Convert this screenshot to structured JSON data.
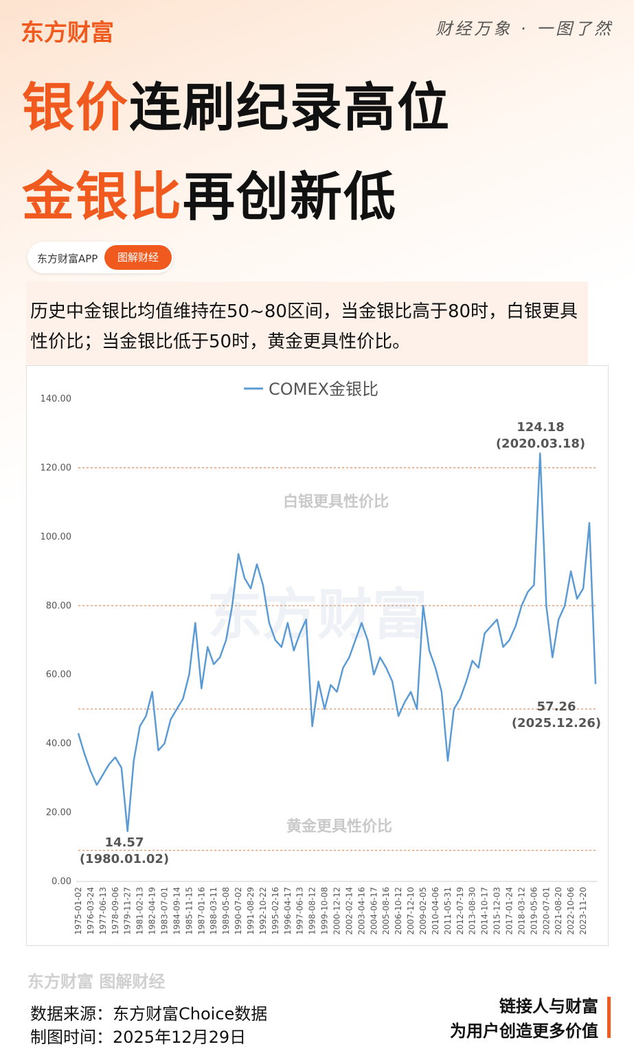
{
  "header": {
    "brand": "东方财富",
    "slogan": "财经万象 · 一图了然",
    "title_line1": [
      "银价",
      "连刷纪录高位"
    ],
    "title_line2": [
      "金银比",
      "再创新低"
    ],
    "tag": "东方财富APP",
    "button": "图解财经"
  },
  "intro": "历史中金银比均值维持在50~80区间，当金银比高于80时，白银更具性价比；当金银比低于50时，黄金更具性价比。",
  "chart_data": {
    "type": "line",
    "watermark": "东方财富",
    "categories": [
      "1975-01-02",
      null,
      "1976-03-24",
      null,
      "1977-06-13",
      null,
      "1978-09-06",
      null,
      "1979-11-27",
      null,
      "1981-02-13",
      null,
      "1982-04-19",
      null,
      "1983-07-01",
      null,
      "1984-09-14",
      null,
      "1985-11-15",
      null,
      "1987-01-16",
      null,
      "1988-03-11",
      null,
      "1989-05-08",
      null,
      "1990-07-02",
      null,
      "1991-08-29",
      null,
      "1992-10-22",
      null,
      "1995-02-16",
      null,
      "1996-04-17",
      null,
      "1997-06-13",
      null,
      "1998-08-12",
      null,
      "1999-10-08",
      null,
      "2000-12-12",
      null,
      "2002-02-14",
      null,
      "2003-04-16",
      null,
      "2004-06-17",
      null,
      "2005-08-16",
      null,
      "2006-10-12",
      null,
      "2007-12-10",
      null,
      "2009-02-05",
      null,
      "2010-04-06",
      null,
      "2011-05-31",
      null,
      "2012-07-19",
      null,
      "2013-08-30",
      null,
      "2014-10-17",
      null,
      "2015-12-03",
      null,
      "2017-01-24",
      null,
      "2018-03-12",
      null,
      "2019-05-06",
      null,
      "2020-07-01",
      null,
      "2021-08-20",
      null,
      "2022-10-06",
      null,
      "2023-11-20",
      null,
      null
    ],
    "series": [
      {
        "name": "COMEX金银比",
        "color": "#5b9bd5",
        "values": [
          43,
          37,
          32,
          28,
          31,
          34,
          36,
          33,
          14.57,
          35,
          45,
          48,
          55,
          38,
          40,
          47,
          50,
          53,
          60,
          75,
          56,
          68,
          63,
          65,
          70,
          80,
          95,
          88,
          85,
          92,
          86,
          75,
          70,
          68,
          75,
          67,
          72,
          76,
          45,
          58,
          50,
          57,
          55,
          62,
          65,
          70,
          75,
          70,
          60,
          65,
          62,
          58,
          48,
          52,
          55,
          50,
          80,
          67,
          62,
          55,
          35,
          50,
          53,
          58,
          64,
          62,
          72,
          74,
          76,
          68,
          70,
          74,
          80,
          84,
          86,
          124.18,
          80,
          65,
          76,
          80,
          90,
          82,
          85,
          104,
          57.26
        ]
      }
    ],
    "ylim": [
      0,
      140
    ],
    "yticks": [
      {
        "value": 0,
        "label": "0.00"
      },
      {
        "value": 20,
        "label": "20.00"
      },
      {
        "value": 40,
        "label": "40.00"
      },
      {
        "value": 60,
        "label": "60.00"
      },
      {
        "value": 80,
        "label": "80.00"
      },
      {
        "value": 100,
        "label": "100.00"
      },
      {
        "value": 120,
        "label": "120.00"
      },
      {
        "value": 140,
        "label": "140.00"
      }
    ],
    "ref_lines": [
      120,
      80,
      50,
      9
    ],
    "ref_color": "#d9773f",
    "zones": [
      "白银更具性价比",
      "黄金更具性价比"
    ],
    "annotations": [
      [
        "124.18",
        "(2020.03.18)"
      ],
      [
        "57.26",
        "(2025.12.26)"
      ],
      [
        "14.57",
        "(1980.01.02)"
      ]
    ]
  },
  "footer": {
    "watermark": "东方财富 图解财经",
    "source": "数据来源：东方财富Choice数据",
    "date": "制图时间：2025年12月29日",
    "motto1": "链接人与财富",
    "motto2": "为用户创造更多价值"
  }
}
